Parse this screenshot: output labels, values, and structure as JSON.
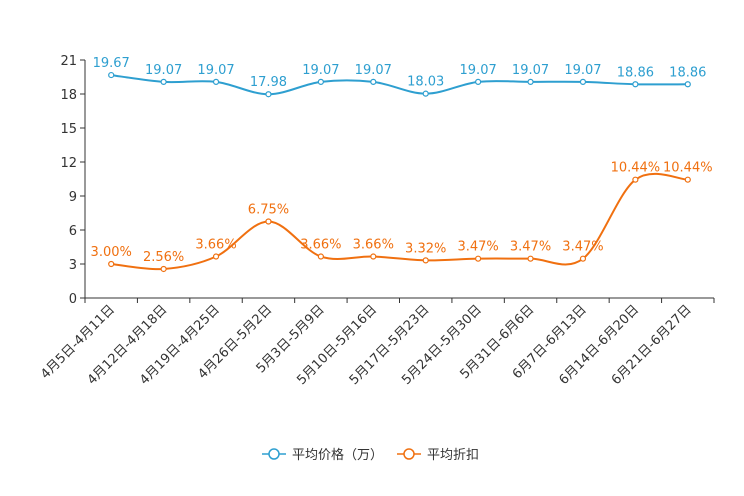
{
  "chart_data": {
    "type": "line",
    "title": "",
    "xlabel": "",
    "ylabel": "",
    "ylim": [
      0,
      21
    ],
    "yticks": [
      0,
      3,
      6,
      9,
      12,
      15,
      18,
      21
    ],
    "grid": false,
    "legend_position": "bottom-center",
    "categories": [
      "4月5日-4月11日",
      "4月12日-4月18日",
      "4月19日-4月25日",
      "4月26日-5月2日",
      "5月3日-5月9日",
      "5月10日-5月16日",
      "5月17日-5月23日",
      "5月24日-5月30日",
      "5月31日-6月6日",
      "6月7日-6月13日",
      "6月14日-6月20日",
      "6月21日-6月27日"
    ],
    "series": [
      {
        "name": "平均价格（万）",
        "color": "#2e9fd0",
        "values": [
          19.67,
          19.07,
          19.07,
          17.98,
          19.07,
          19.07,
          18.03,
          19.07,
          19.07,
          19.07,
          18.86,
          18.86
        ],
        "labels": [
          "19.67",
          "19.07",
          "19.07",
          "17.98",
          "19.07",
          "19.07",
          "18.03",
          "19.07",
          "19.07",
          "19.07",
          "18.86",
          "18.86"
        ]
      },
      {
        "name": "平均折扣",
        "color": "#f07010",
        "values": [
          3.0,
          2.56,
          3.66,
          6.75,
          3.66,
          3.66,
          3.32,
          3.47,
          3.47,
          3.47,
          10.44,
          10.44
        ],
        "labels": [
          "3.00%",
          "2.56%",
          "3.66%",
          "6.75%",
          "3.66%",
          "3.66%",
          "3.32%",
          "3.47%",
          "3.47%",
          "3.47%",
          "10.44%",
          "10.44%"
        ]
      }
    ]
  }
}
